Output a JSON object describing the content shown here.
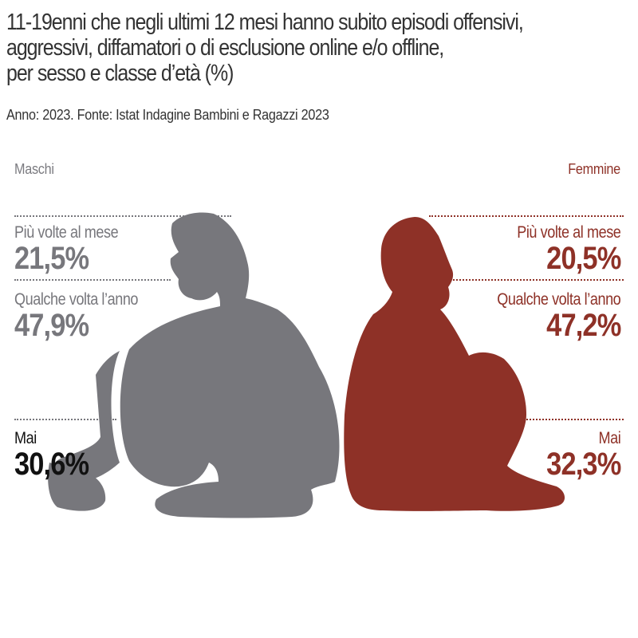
{
  "title": "11-19enni che negli ultimi 12 mesi hanno subito episodi offensivi, aggressivi, diffamatori o di esclusione online e/o offline, per sesso e classe d’età (%)",
  "title_lines": [
    "11-19enni che negli ultimi 12 mesi hanno subito episodi offensivi,",
    "aggressivi, diffamatori o di esclusione online e/o offline,",
    "per sesso e classe d’età (%)"
  ],
  "subtitle": "Anno: 2023. Fonte: Istat Indagine Bambini e Ragazzi 2023",
  "colors": {
    "male": "#77777c",
    "female": "#8e3127",
    "text": "#333333",
    "male_highlight": "#111111"
  },
  "icons": {
    "male": "boy-sitting-silhouette",
    "female": "girl-sitting-silhouette"
  },
  "chart_data": {
    "type": "table",
    "title": "11-19enni che negli ultimi 12 mesi hanno subito episodi offensivi, aggressivi, diffamatori o di esclusione online e/o offline, per sesso e classe d’età (%)",
    "subtitle": "Anno: 2023. Fonte: Istat Indagine Bambini e Ragazzi 2023",
    "unit": "%",
    "categories": [
      "Più volte al mese",
      "Qualche volta l’anno",
      "Mai"
    ],
    "series": [
      {
        "name": "Maschi",
        "values": [
          21.5,
          47.9,
          30.6
        ],
        "labels": [
          "21,5%",
          "47,9%",
          "30,6%"
        ]
      },
      {
        "name": "Femmine",
        "values": [
          20.5,
          47.2,
          32.3
        ],
        "labels": [
          "20,5%",
          "47,2%",
          "32,3%"
        ]
      }
    ]
  }
}
